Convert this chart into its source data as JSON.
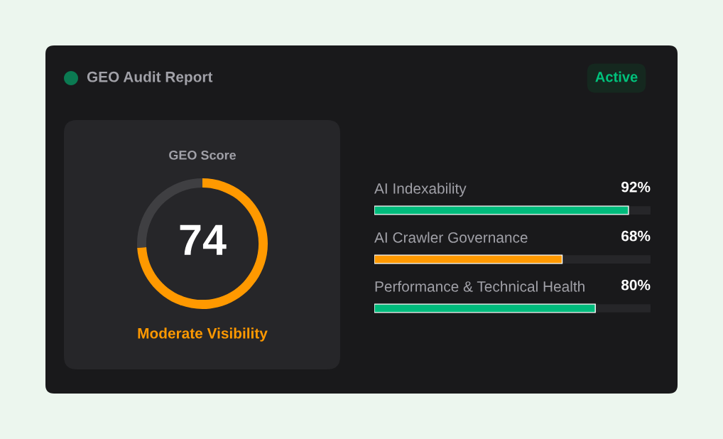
{
  "chart_data": [
    {
      "type": "other",
      "title": "GEO Audit Report",
      "annotations": [
        "Active"
      ]
    },
    {
      "type": "donut",
      "title": "GEO Score",
      "categories": [
        null,
        null
      ],
      "values": [
        74,
        26
      ],
      "colors": [
        "#ff9900",
        "#3f3f42"
      ],
      "value_labels": [
        "74",
        null
      ],
      "annotations": [
        "Moderate Visibility"
      ]
    },
    {
      "type": "bar",
      "orientation": "horizontal",
      "categories": [
        "AI Indexability",
        "AI Crawler Governance",
        "Performance & Technical Health"
      ],
      "values": [
        92,
        68,
        80
      ],
      "colors": [
        "#00bb7c",
        "#ff9900",
        "#00bb7c"
      ],
      "xlim": [
        0,
        100
      ],
      "value_labels": [
        "92%",
        "68%",
        "80%"
      ],
      "tick_labels": "y"
    }
  ]
}
